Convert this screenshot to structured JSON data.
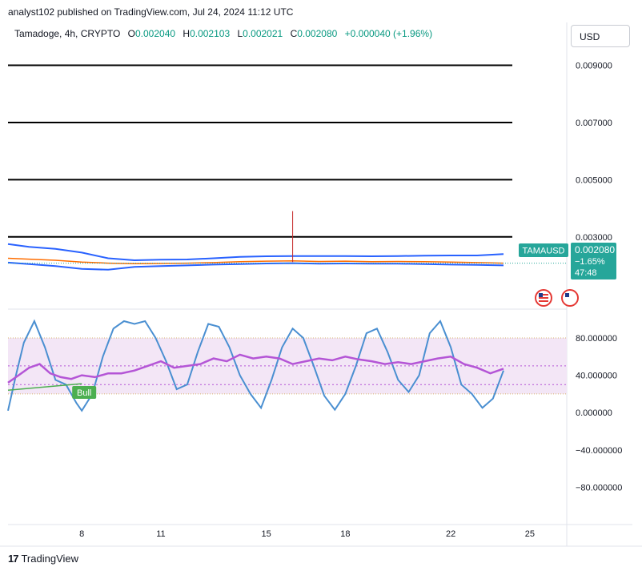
{
  "header": {
    "published": "analyst102 published on TradingView.com, Jul 24, 2024 11:12 UTC",
    "symbol": "Tamadoge, 4h, CRYPTO",
    "o_label": "O",
    "o_value": "0.002040",
    "h_label": "H",
    "h_value": "0.002103",
    "l_label": "L",
    "l_value": "0.002021",
    "c_label": "C",
    "c_value": "0.002080",
    "change": "+0.000040 (+1.96%)",
    "currency": "USD"
  },
  "price_tag": {
    "ticker": "TAMAUSD",
    "price": "0.002080",
    "change": "−1.65%",
    "countdown": "47:48",
    "color": "#26a69a"
  },
  "footer": {
    "brand": "TradingView",
    "logo": "17"
  },
  "colors": {
    "bollinger": "#2962ff",
    "bb_middle": "#ff6d00",
    "stoch": "#4a8fd1",
    "rsi": "#b455d6",
    "rsi_band": "#f3e6f6",
    "bull": "#4caf50"
  },
  "chart_data": [
    {
      "type": "line",
      "name": "price",
      "y_ticks": [
        "0.009000",
        "0.007000",
        "0.005000",
        "0.003000"
      ],
      "ylim": [
        0.0005,
        0.0105
      ],
      "x_ticks": [
        "8",
        "11",
        "15",
        "18",
        "22",
        "25"
      ],
      "x_tick_days": [
        8,
        11,
        15,
        18,
        22,
        25
      ],
      "xlim": [
        5.2,
        26.4
      ],
      "horizontal_levels": [
        0.009,
        0.007,
        0.005,
        0.003
      ],
      "spike": {
        "day": 16.0,
        "high": 0.0039,
        "low": 0.00212
      },
      "price_points": {
        "x": [
          5.2,
          6.0,
          7.0,
          8.0,
          9.0,
          10.0,
          11.0,
          12.0,
          13.0,
          14.0,
          15.0,
          16.0,
          17.0,
          18.0,
          19.0,
          20.0,
          21.0,
          22.0,
          23.0,
          24.0
        ],
        "y": [
          0.00225,
          0.00222,
          0.00218,
          0.00212,
          0.00208,
          0.00206,
          0.00207,
          0.00208,
          0.0021,
          0.00213,
          0.00215,
          0.00216,
          0.00214,
          0.00215,
          0.00213,
          0.00214,
          0.00213,
          0.00212,
          0.0021,
          0.00208
        ]
      },
      "bb_upper": [
        0.00275,
        0.00265,
        0.00258,
        0.00245,
        0.00225,
        0.00218,
        0.0022,
        0.00221,
        0.00225,
        0.0023,
        0.00232,
        0.00233,
        0.00233,
        0.00233,
        0.00232,
        0.00233,
        0.00234,
        0.00235,
        0.00235,
        0.0024
      ],
      "bb_lower": [
        0.0021,
        0.00205,
        0.00198,
        0.00188,
        0.00185,
        0.00195,
        0.00198,
        0.002,
        0.00203,
        0.00205,
        0.00207,
        0.00208,
        0.00206,
        0.00207,
        0.00206,
        0.00206,
        0.00205,
        0.00203,
        0.00202,
        0.002
      ],
      "last_price": 0.00208
    },
    {
      "type": "line",
      "name": "oscillator",
      "y_ticks": [
        "80.000000",
        "40.000000",
        "0.000000",
        "−40.000000",
        "−80.000000"
      ],
      "y_tick_values": [
        80,
        40,
        0,
        -40,
        -80
      ],
      "ylim": [
        -120,
        110
      ],
      "band": [
        20,
        80
      ],
      "label": "Bull",
      "stoch": {
        "x": [
          5.2,
          5.5,
          5.8,
          6.2,
          6.6,
          7.0,
          7.4,
          7.8,
          8.0,
          8.4,
          8.8,
          9.2,
          9.6,
          10.0,
          10.4,
          10.8,
          11.2,
          11.6,
          12.0,
          12.4,
          12.8,
          13.2,
          13.6,
          14.0,
          14.4,
          14.8,
          15.2,
          15.6,
          16.0,
          16.4,
          16.8,
          17.2,
          17.6,
          18.0,
          18.4,
          18.8,
          19.2,
          19.6,
          20.0,
          20.4,
          20.8,
          21.2,
          21.6,
          22.0,
          22.4,
          22.8,
          23.2,
          23.6,
          24.0
        ],
        "y": [
          2,
          40,
          75,
          98,
          70,
          35,
          30,
          10,
          2,
          20,
          60,
          90,
          98,
          95,
          98,
          80,
          55,
          25,
          30,
          65,
          95,
          92,
          70,
          40,
          20,
          5,
          35,
          70,
          90,
          80,
          50,
          18,
          3,
          20,
          50,
          85,
          90,
          65,
          35,
          22,
          40,
          85,
          98,
          70,
          30,
          20,
          5,
          15,
          45
        ]
      },
      "rsi": {
        "x": [
          5.2,
          5.6,
          6.0,
          6.4,
          6.8,
          7.2,
          7.6,
          8.0,
          8.5,
          9.0,
          9.5,
          10.0,
          10.5,
          11.0,
          11.5,
          12.0,
          12.5,
          13.0,
          13.5,
          14.0,
          14.5,
          15.0,
          15.5,
          16.0,
          16.5,
          17.0,
          17.5,
          18.0,
          18.5,
          19.0,
          19.5,
          20.0,
          20.5,
          21.0,
          21.5,
          22.0,
          22.5,
          23.0,
          23.5,
          24.0
        ],
        "y": [
          32,
          40,
          48,
          52,
          42,
          38,
          36,
          40,
          38,
          42,
          42,
          45,
          50,
          55,
          48,
          50,
          52,
          58,
          55,
          62,
          58,
          60,
          58,
          52,
          55,
          58,
          56,
          60,
          57,
          55,
          52,
          54,
          52,
          55,
          58,
          60,
          52,
          48,
          42,
          47
        ]
      },
      "signal": {
        "x": [
          5.2,
          8.0
        ],
        "y": [
          24,
          31
        ]
      }
    }
  ]
}
